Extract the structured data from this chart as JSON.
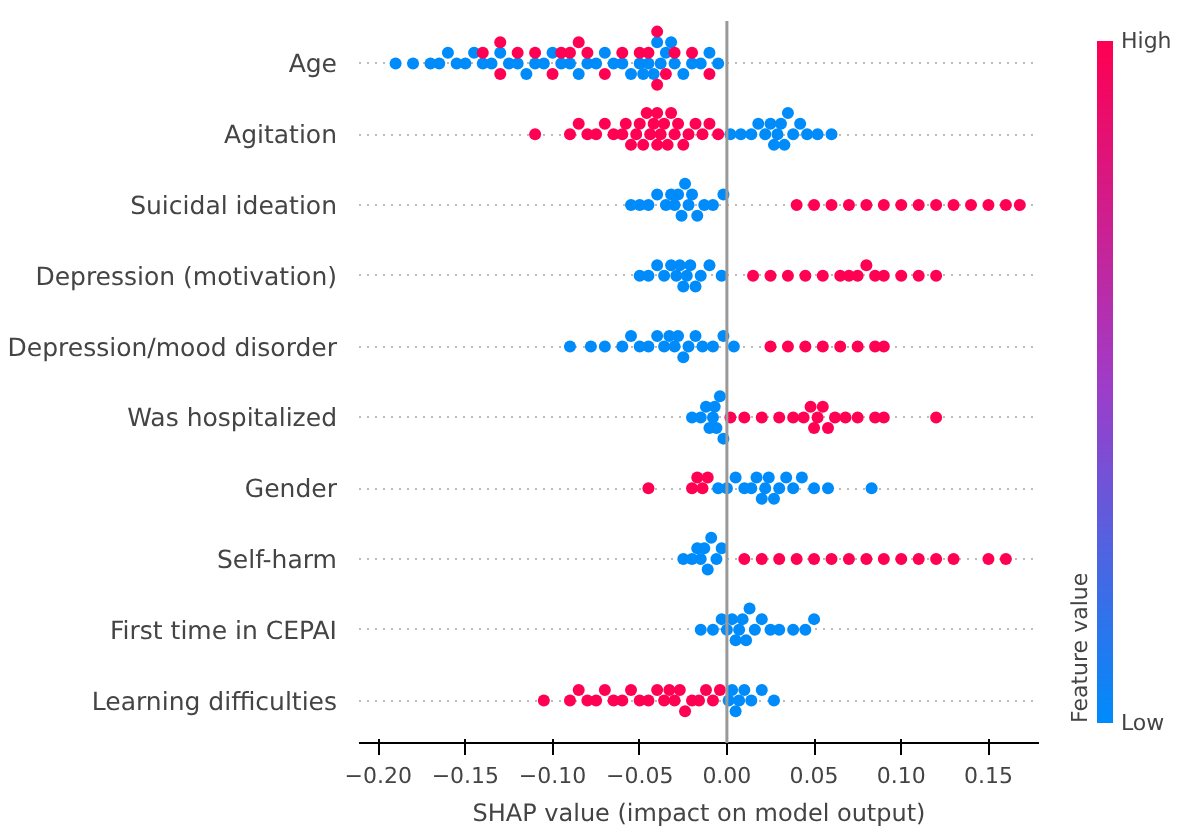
{
  "chart_data": {
    "type": "scatter",
    "orientation": "horizontal",
    "xlabel": "SHAP value (impact on model output)",
    "clabel": "Feature value",
    "clim": [
      0,
      1
    ],
    "cticks": [
      {
        "value": 0,
        "label": "Low"
      },
      {
        "value": 1,
        "label": "High"
      }
    ],
    "categories": [
      "Age",
      "Agitation",
      "Suicidal ideation",
      "Depression (motivation)",
      "Depression/mood disorder",
      "Was hospitalized",
      "Gender",
      "Self-harm",
      "First time in CEPAI",
      "Learning difficulties"
    ],
    "xlim": [
      -0.211,
      0.179
    ],
    "xticks": [
      {
        "value": -0.2,
        "label": "−0.20"
      },
      {
        "value": -0.15,
        "label": "−0.15"
      },
      {
        "value": -0.1,
        "label": "−0.10"
      },
      {
        "value": -0.05,
        "label": "−0.05"
      },
      {
        "value": 0,
        "label": "0.00"
      },
      {
        "value": 0.05,
        "label": "0.05"
      },
      {
        "value": 0.1,
        "label": "0.10"
      },
      {
        "value": 0.15,
        "label": "0.15"
      }
    ],
    "grid": "y",
    "marker": "circle",
    "ref_lines": [
      {
        "axis": "x",
        "value": 0,
        "color": "#999999"
      }
    ],
    "series": [
      {
        "color": "#008bfb",
        "x": [
          "Age",
          "Age",
          "Age",
          "Age",
          "Age",
          "Age",
          "Age",
          "Age",
          "Age",
          "Age",
          "Age",
          "Age",
          "Age",
          "Age",
          "Age",
          "Age",
          "Age",
          "Age",
          "Age",
          "Age",
          "Age",
          "Age",
          "Age",
          "Age",
          "Age",
          "Age",
          "Age",
          "Age",
          "Age",
          "Age",
          "Age",
          "Age",
          "Age",
          "Age",
          "Age",
          "Age",
          "Age",
          "Age",
          "Age",
          "Age"
        ],
        "values": [
          -0.19,
          -0.18,
          -0.17,
          -0.165,
          -0.16,
          -0.155,
          -0.15,
          -0.145,
          -0.14,
          -0.135,
          -0.13,
          -0.125,
          -0.12,
          -0.115,
          -0.11,
          -0.105,
          -0.1,
          -0.095,
          -0.09,
          -0.085,
          -0.08,
          -0.075,
          -0.07,
          -0.065,
          -0.06,
          -0.055,
          -0.05,
          -0.048,
          -0.045,
          -0.042,
          -0.04,
          -0.038,
          -0.035,
          -0.032,
          -0.03,
          -0.025,
          -0.02,
          -0.015,
          -0.01,
          -0.005
        ]
      },
      {
        "color": "#ff0052",
        "x": [
          "Age",
          "Age",
          "Age",
          "Age",
          "Age",
          "Age",
          "Age",
          "Age",
          "Age",
          "Age",
          "Age",
          "Age",
          "Age",
          "Age",
          "Age",
          "Age",
          "Age",
          "Age",
          "Age",
          "Age"
        ],
        "values": [
          -0.14,
          -0.13,
          -0.13,
          -0.12,
          -0.11,
          -0.1,
          -0.095,
          -0.09,
          -0.085,
          -0.08,
          -0.07,
          -0.06,
          -0.05,
          -0.045,
          -0.04,
          -0.04,
          -0.035,
          -0.03,
          -0.02,
          -0.01
        ]
      },
      {
        "color": "#008bfb",
        "x": [
          "Agitation",
          "Agitation",
          "Agitation",
          "Agitation",
          "Agitation",
          "Agitation",
          "Agitation",
          "Agitation",
          "Agitation",
          "Agitation",
          "Agitation",
          "Agitation",
          "Agitation",
          "Agitation",
          "Agitation",
          "Agitation"
        ],
        "values": [
          0.002,
          0.008,
          0.014,
          0.018,
          0.022,
          0.025,
          0.027,
          0.029,
          0.031,
          0.033,
          0.035,
          0.038,
          0.042,
          0.046,
          0.052,
          0.06
        ]
      },
      {
        "color": "#ff0052",
        "x": [
          "Agitation",
          "Agitation",
          "Agitation",
          "Agitation",
          "Agitation",
          "Agitation",
          "Agitation",
          "Agitation",
          "Agitation",
          "Agitation",
          "Agitation",
          "Agitation",
          "Agitation",
          "Agitation",
          "Agitation",
          "Agitation",
          "Agitation",
          "Agitation",
          "Agitation",
          "Agitation",
          "Agitation",
          "Agitation",
          "Agitation",
          "Agitation",
          "Agitation",
          "Agitation",
          "Agitation",
          "Agitation",
          "Agitation",
          "Agitation"
        ],
        "values": [
          -0.11,
          -0.09,
          -0.085,
          -0.08,
          -0.075,
          -0.07,
          -0.065,
          -0.06,
          -0.058,
          -0.055,
          -0.052,
          -0.05,
          -0.048,
          -0.046,
          -0.044,
          -0.042,
          -0.04,
          -0.04,
          -0.038,
          -0.036,
          -0.034,
          -0.032,
          -0.03,
          -0.028,
          -0.025,
          -0.022,
          -0.018,
          -0.014,
          -0.01,
          -0.005
        ]
      },
      {
        "color": "#008bfb",
        "x": [
          "Suicidal ideation",
          "Suicidal ideation",
          "Suicidal ideation",
          "Suicidal ideation",
          "Suicidal ideation",
          "Suicidal ideation",
          "Suicidal ideation",
          "Suicidal ideation",
          "Suicidal ideation",
          "Suicidal ideation",
          "Suicidal ideation",
          "Suicidal ideation",
          "Suicidal ideation",
          "Suicidal ideation",
          "Suicidal ideation",
          "Suicidal ideation"
        ],
        "values": [
          -0.055,
          -0.05,
          -0.045,
          -0.04,
          -0.035,
          -0.032,
          -0.03,
          -0.028,
          -0.026,
          -0.024,
          -0.022,
          -0.02,
          -0.017,
          -0.013,
          -0.008,
          -0.002
        ]
      },
      {
        "color": "#ff0052",
        "x": [
          "Suicidal ideation",
          "Suicidal ideation",
          "Suicidal ideation",
          "Suicidal ideation",
          "Suicidal ideation",
          "Suicidal ideation",
          "Suicidal ideation",
          "Suicidal ideation",
          "Suicidal ideation",
          "Suicidal ideation",
          "Suicidal ideation",
          "Suicidal ideation",
          "Suicidal ideation",
          "Suicidal ideation"
        ],
        "values": [
          0.04,
          0.05,
          0.06,
          0.07,
          0.08,
          0.09,
          0.1,
          0.11,
          0.12,
          0.13,
          0.14,
          0.15,
          0.16,
          0.168
        ]
      },
      {
        "color": "#008bfb",
        "x": [
          "Depression (motivation)",
          "Depression (motivation)",
          "Depression (motivation)",
          "Depression (motivation)",
          "Depression (motivation)",
          "Depression (motivation)",
          "Depression (motivation)",
          "Depression (motivation)",
          "Depression (motivation)",
          "Depression (motivation)",
          "Depression (motivation)",
          "Depression (motivation)",
          "Depression (motivation)",
          "Depression (motivation)"
        ],
        "values": [
          -0.05,
          -0.045,
          -0.04,
          -0.036,
          -0.032,
          -0.029,
          -0.027,
          -0.025,
          -0.023,
          -0.021,
          -0.018,
          -0.015,
          -0.01,
          -0.003
        ]
      },
      {
        "color": "#ff0052",
        "x": [
          "Depression (motivation)",
          "Depression (motivation)",
          "Depression (motivation)",
          "Depression (motivation)",
          "Depression (motivation)",
          "Depression (motivation)",
          "Depression (motivation)",
          "Depression (motivation)",
          "Depression (motivation)",
          "Depression (motivation)",
          "Depression (motivation)",
          "Depression (motivation)",
          "Depression (motivation)",
          "Depression (motivation)"
        ],
        "values": [
          0.015,
          0.025,
          0.035,
          0.045,
          0.055,
          0.065,
          0.07,
          0.075,
          0.08,
          0.085,
          0.09,
          0.1,
          0.11,
          0.12
        ]
      },
      {
        "color": "#008bfb",
        "x": [
          "Depression/mood disorder",
          "Depression/mood disorder",
          "Depression/mood disorder",
          "Depression/mood disorder",
          "Depression/mood disorder",
          "Depression/mood disorder",
          "Depression/mood disorder",
          "Depression/mood disorder",
          "Depression/mood disorder",
          "Depression/mood disorder",
          "Depression/mood disorder",
          "Depression/mood disorder",
          "Depression/mood disorder",
          "Depression/mood disorder",
          "Depression/mood disorder",
          "Depression/mood disorder",
          "Depression/mood disorder",
          "Depression/mood disorder",
          "Depression/mood disorder"
        ],
        "values": [
          -0.09,
          -0.078,
          -0.07,
          -0.06,
          -0.055,
          -0.05,
          -0.045,
          -0.04,
          -0.036,
          -0.033,
          -0.03,
          -0.028,
          -0.025,
          -0.022,
          -0.018,
          -0.014,
          -0.008,
          -0.002,
          0.004
        ]
      },
      {
        "color": "#ff0052",
        "x": [
          "Depression/mood disorder",
          "Depression/mood disorder",
          "Depression/mood disorder",
          "Depression/mood disorder",
          "Depression/mood disorder",
          "Depression/mood disorder",
          "Depression/mood disorder",
          "Depression/mood disorder"
        ],
        "values": [
          0.025,
          0.035,
          0.045,
          0.055,
          0.065,
          0.075,
          0.085,
          0.09
        ]
      },
      {
        "color": "#008bfb",
        "x": [
          "Was hospitalized",
          "Was hospitalized",
          "Was hospitalized",
          "Was hospitalized",
          "Was hospitalized",
          "Was hospitalized",
          "Was hospitalized",
          "Was hospitalized",
          "Was hospitalized"
        ],
        "values": [
          -0.02,
          -0.015,
          -0.012,
          -0.01,
          -0.008,
          -0.007,
          -0.006,
          -0.004,
          -0.002
        ]
      },
      {
        "color": "#ff0052",
        "x": [
          "Was hospitalized",
          "Was hospitalized",
          "Was hospitalized",
          "Was hospitalized",
          "Was hospitalized",
          "Was hospitalized",
          "Was hospitalized",
          "Was hospitalized",
          "Was hospitalized",
          "Was hospitalized",
          "Was hospitalized",
          "Was hospitalized",
          "Was hospitalized",
          "Was hospitalized",
          "Was hospitalized",
          "Was hospitalized",
          "Was hospitalized"
        ],
        "values": [
          0.002,
          0.01,
          0.02,
          0.03,
          0.038,
          0.044,
          0.048,
          0.05,
          0.052,
          0.055,
          0.058,
          0.062,
          0.068,
          0.075,
          0.085,
          0.09,
          0.12
        ]
      },
      {
        "color": "#008bfb",
        "x": [
          "Gender",
          "Gender",
          "Gender",
          "Gender",
          "Gender",
          "Gender",
          "Gender",
          "Gender",
          "Gender",
          "Gender",
          "Gender",
          "Gender",
          "Gender",
          "Gender",
          "Gender",
          "Gender",
          "Gender"
        ],
        "values": [
          -0.005,
          0.0,
          0.005,
          0.01,
          0.014,
          0.017,
          0.02,
          0.022,
          0.024,
          0.027,
          0.03,
          0.034,
          0.038,
          0.043,
          0.05,
          0.058,
          0.083
        ]
      },
      {
        "color": "#ff0052",
        "x": [
          "Gender",
          "Gender",
          "Gender",
          "Gender",
          "Gender"
        ],
        "values": [
          -0.045,
          -0.02,
          -0.017,
          -0.014,
          -0.011
        ]
      },
      {
        "color": "#008bfb",
        "x": [
          "Self-harm",
          "Self-harm",
          "Self-harm",
          "Self-harm",
          "Self-harm",
          "Self-harm",
          "Self-harm",
          "Self-harm",
          "Self-harm"
        ],
        "values": [
          -0.025,
          -0.02,
          -0.017,
          -0.015,
          -0.013,
          -0.011,
          -0.009,
          -0.006,
          -0.003
        ]
      },
      {
        "color": "#ff0052",
        "x": [
          "Self-harm",
          "Self-harm",
          "Self-harm",
          "Self-harm",
          "Self-harm",
          "Self-harm",
          "Self-harm",
          "Self-harm",
          "Self-harm",
          "Self-harm",
          "Self-harm",
          "Self-harm",
          "Self-harm",
          "Self-harm",
          "Self-harm"
        ],
        "values": [
          0.01,
          0.02,
          0.03,
          0.04,
          0.05,
          0.06,
          0.07,
          0.08,
          0.09,
          0.1,
          0.11,
          0.12,
          0.13,
          0.15,
          0.16
        ]
      },
      {
        "color": "#008bfb",
        "x": [
          "First time in CEPAI",
          "First time in CEPAI",
          "First time in CEPAI",
          "First time in CEPAI",
          "First time in CEPAI",
          "First time in CEPAI",
          "First time in CEPAI",
          "First time in CEPAI",
          "First time in CEPAI",
          "First time in CEPAI",
          "First time in CEPAI",
          "First time in CEPAI",
          "First time in CEPAI",
          "First time in CEPAI",
          "First time in CEPAI",
          "First time in CEPAI",
          "First time in CEPAI"
        ],
        "values": [
          -0.015,
          -0.008,
          -0.003,
          0.0,
          0.003,
          0.005,
          0.007,
          0.009,
          0.011,
          0.013,
          0.016,
          0.02,
          0.025,
          0.03,
          0.038,
          0.045,
          0.05
        ]
      },
      {
        "color": "#008bfb",
        "x": [
          "Learning difficulties",
          "Learning difficulties",
          "Learning difficulties",
          "Learning difficulties",
          "Learning difficulties",
          "Learning difficulties",
          "Learning difficulties",
          "Learning difficulties"
        ],
        "values": [
          0.001,
          0.003,
          0.005,
          0.007,
          0.01,
          0.014,
          0.02,
          0.027
        ]
      },
      {
        "color": "#ff0052",
        "x": [
          "Learning difficulties",
          "Learning difficulties",
          "Learning difficulties",
          "Learning difficulties",
          "Learning difficulties",
          "Learning difficulties",
          "Learning difficulties",
          "Learning difficulties",
          "Learning difficulties",
          "Learning difficulties",
          "Learning difficulties",
          "Learning difficulties",
          "Learning difficulties",
          "Learning difficulties",
          "Learning difficulties",
          "Learning difficulties",
          "Learning difficulties",
          "Learning difficulties",
          "Learning difficulties",
          "Learning difficulties",
          "Learning difficulties",
          "Learning difficulties"
        ],
        "values": [
          -0.105,
          -0.09,
          -0.085,
          -0.08,
          -0.075,
          -0.07,
          -0.065,
          -0.06,
          -0.055,
          -0.05,
          -0.045,
          -0.04,
          -0.036,
          -0.033,
          -0.03,
          -0.027,
          -0.024,
          -0.02,
          -0.016,
          -0.012,
          -0.008,
          -0.004
        ]
      }
    ]
  }
}
